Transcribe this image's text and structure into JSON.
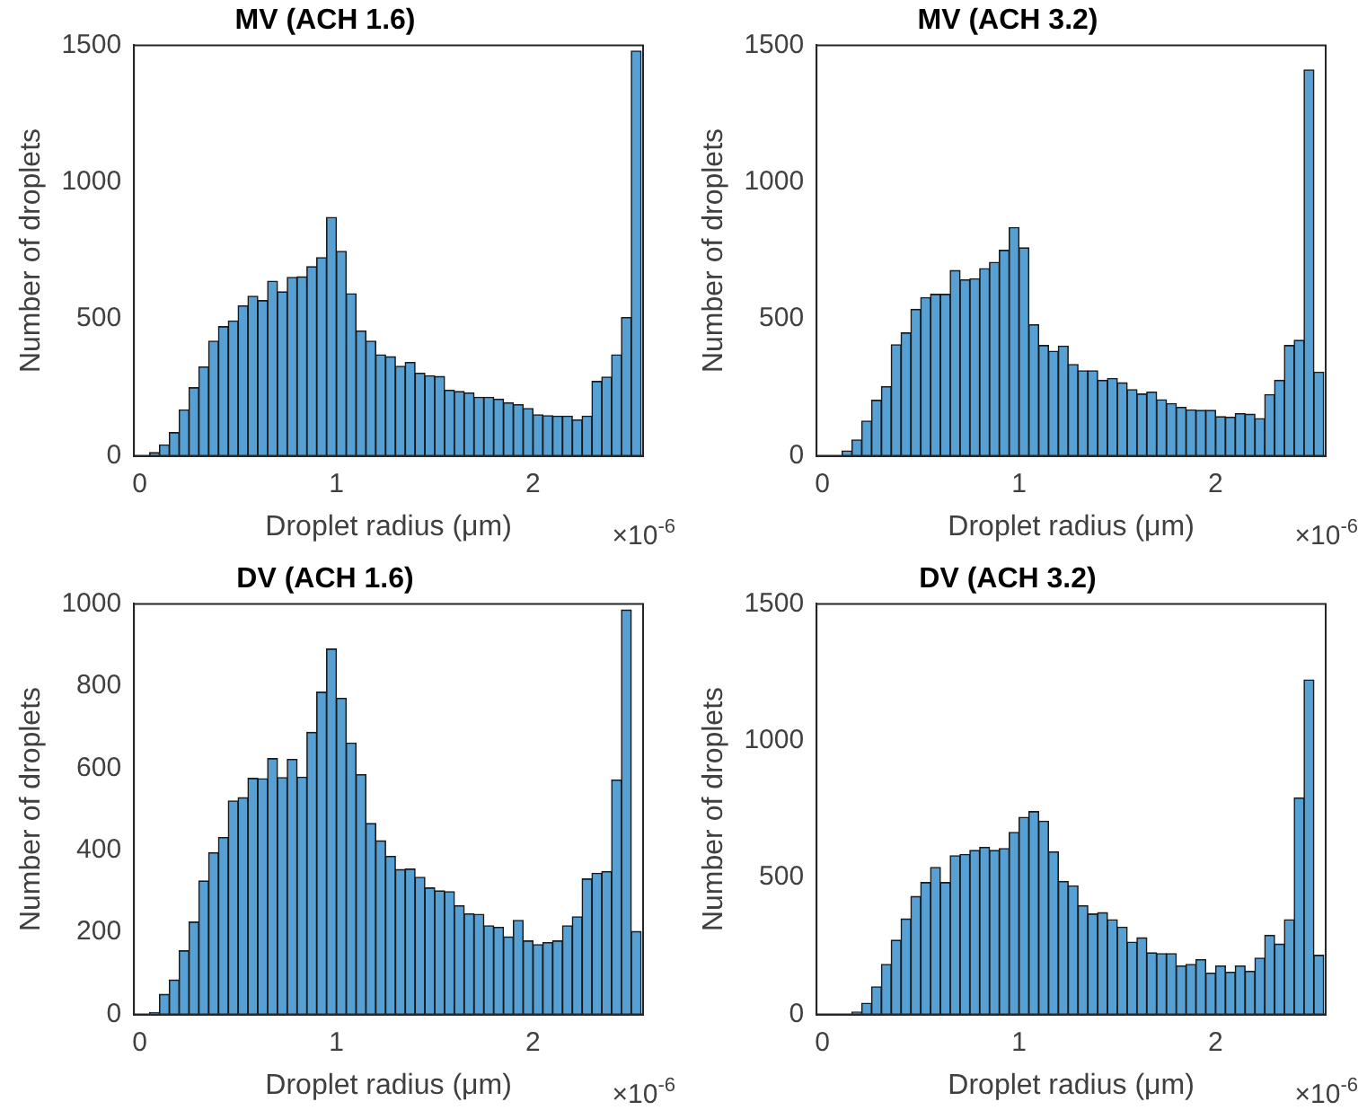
{
  "chart_data": [
    {
      "type": "histogram",
      "title": "MV (ACH 1.6)",
      "xlabel": "Droplet radius (μm)",
      "ylabel": "Number of droplets",
      "color": "#56a0d3",
      "grid": false,
      "xlim": [
        -0.03,
        2.56
      ],
      "xticks": [
        0,
        1,
        2
      ],
      "ylim": [
        0,
        1500
      ],
      "yticks": [
        0,
        500,
        1000,
        1500
      ],
      "annotations": [
        "×10$^{-6}$"
      ],
      "bins": [
        0,
        0.05,
        0.1,
        0.15,
        0.2,
        0.25,
        0.3,
        0.35,
        0.4,
        0.45,
        0.5,
        0.55,
        0.6,
        0.65,
        0.7,
        0.75,
        0.8,
        0.85,
        0.9,
        0.95,
        1,
        1.05,
        1.1,
        1.15,
        1.2,
        1.25,
        1.3,
        1.35,
        1.4,
        1.45,
        1.5,
        1.55,
        1.6,
        1.65,
        1.7,
        1.75,
        1.8,
        1.85,
        1.9,
        1.95,
        2,
        2.05,
        2.1,
        2.15,
        2.2,
        2.25,
        2.3,
        2.35,
        2.4,
        2.45,
        2.5,
        2.55
      ],
      "values": [
        0,
        12,
        40,
        85,
        168,
        249,
        325,
        419,
        472,
        493,
        548,
        583,
        567,
        638,
        599,
        652,
        654,
        691,
        724,
        871,
        747,
        592,
        456,
        419,
        369,
        362,
        327,
        341,
        302,
        293,
        290,
        240,
        235,
        230,
        214,
        214,
        207,
        194,
        187,
        173,
        150,
        147,
        145,
        145,
        131,
        145,
        272,
        288,
        369,
        505,
        1479
      ]
    },
    {
      "type": "histogram",
      "title": "MV (ACH 3.2)",
      "xlabel": "Droplet radius (μm)",
      "ylabel": "Number of droplets",
      "color": "#56a0d3",
      "grid": false,
      "xlim": [
        -0.03,
        2.56
      ],
      "xticks": [
        0,
        1,
        2
      ],
      "ylim": [
        0,
        1500
      ],
      "yticks": [
        0,
        500,
        1000,
        1500
      ],
      "annotations": [
        "×10$^{-6}$"
      ],
      "bins": [
        0,
        0.05,
        0.1,
        0.15,
        0.2,
        0.25,
        0.3,
        0.35,
        0.4,
        0.45,
        0.5,
        0.55,
        0.6,
        0.65,
        0.7,
        0.75,
        0.8,
        0.85,
        0.9,
        0.95,
        1,
        1.05,
        1.1,
        1.15,
        1.2,
        1.25,
        1.3,
        1.35,
        1.4,
        1.45,
        1.5,
        1.55,
        1.6,
        1.65,
        1.7,
        1.75,
        1.8,
        1.85,
        1.9,
        1.95,
        2,
        2.05,
        2.1,
        2.15,
        2.2,
        2.25,
        2.3,
        2.35,
        2.4,
        2.45,
        2.5,
        2.55
      ],
      "values": [
        0,
        0,
        18,
        58,
        127,
        203,
        253,
        406,
        449,
        535,
        578,
        590,
        590,
        677,
        643,
        647,
        684,
        707,
        751,
        834,
        760,
        479,
        403,
        382,
        401,
        334,
        311,
        311,
        276,
        283,
        267,
        242,
        226,
        233,
        205,
        191,
        177,
        168,
        166,
        166,
        143,
        141,
        154,
        152,
        136,
        224,
        276,
        403,
        422,
        1410,
        306
      ]
    },
    {
      "type": "histogram",
      "title": "DV (ACH 1.6)",
      "xlabel": "Droplet radius (μm)",
      "ylabel": "Number of droplets",
      "color": "#56a0d3",
      "grid": false,
      "xlim": [
        -0.03,
        2.56
      ],
      "xticks": [
        0,
        1,
        2
      ],
      "ylim": [
        0,
        1000
      ],
      "yticks": [
        0,
        200,
        400,
        600,
        800,
        1000
      ],
      "annotations": [
        "×10$^{-6}$"
      ],
      "bins": [
        0,
        0.05,
        0.1,
        0.15,
        0.2,
        0.25,
        0.3,
        0.35,
        0.4,
        0.45,
        0.5,
        0.55,
        0.6,
        0.65,
        0.7,
        0.75,
        0.8,
        0.85,
        0.9,
        0.95,
        1,
        1.05,
        1.1,
        1.15,
        1.2,
        1.25,
        1.3,
        1.35,
        1.4,
        1.45,
        1.5,
        1.55,
        1.6,
        1.65,
        1.7,
        1.75,
        1.8,
        1.85,
        1.9,
        1.95,
        2,
        2.05,
        2.1,
        2.15,
        2.2,
        2.25,
        2.3,
        2.35,
        2.4,
        2.45,
        2.5,
        2.55
      ],
      "values": [
        0,
        5,
        49,
        84,
        155,
        225,
        325,
        394,
        431,
        520,
        528,
        575,
        574,
        623,
        577,
        621,
        578,
        687,
        785,
        890,
        770,
        661,
        584,
        465,
        423,
        385,
        353,
        354,
        334,
        308,
        301,
        299,
        265,
        245,
        244,
        216,
        212,
        189,
        229,
        179,
        170,
        175,
        179,
        216,
        238,
        330,
        344,
        348,
        571,
        985,
        202
      ]
    },
    {
      "type": "histogram",
      "title": "DV (ACH 3.2)",
      "xlabel": "Droplet radius (μm)",
      "ylabel": "Number of droplets",
      "color": "#56a0d3",
      "grid": false,
      "xlim": [
        -0.03,
        2.56
      ],
      "xticks": [
        0,
        1,
        2
      ],
      "ylim": [
        0,
        1500
      ],
      "yticks": [
        0,
        500,
        1000,
        1500
      ],
      "annotations": [
        "×10$^{-6}$"
      ],
      "bins": [
        0,
        0.05,
        0.1,
        0.15,
        0.2,
        0.25,
        0.3,
        0.35,
        0.4,
        0.45,
        0.5,
        0.55,
        0.6,
        0.65,
        0.7,
        0.75,
        0.8,
        0.85,
        0.9,
        0.95,
        1,
        1.05,
        1.1,
        1.15,
        1.2,
        1.25,
        1.3,
        1.35,
        1.4,
        1.45,
        1.5,
        1.55,
        1.6,
        1.65,
        1.7,
        1.75,
        1.8,
        1.85,
        1.9,
        1.95,
        2,
        2.05,
        2.1,
        2.15,
        2.2,
        2.25,
        2.3,
        2.35,
        2.4,
        2.45,
        2.5,
        2.55
      ],
      "values": [
        0,
        0,
        0,
        9,
        41,
        101,
        183,
        271,
        349,
        431,
        482,
        537,
        482,
        580,
        585,
        599,
        610,
        599,
        606,
        665,
        720,
        741,
        706,
        594,
        486,
        470,
        397,
        367,
        372,
        346,
        319,
        264,
        280,
        225,
        222,
        222,
        177,
        183,
        200,
        151,
        177,
        154,
        177,
        158,
        206,
        289,
        257,
        346,
        791,
        1222,
        216
      ]
    }
  ]
}
